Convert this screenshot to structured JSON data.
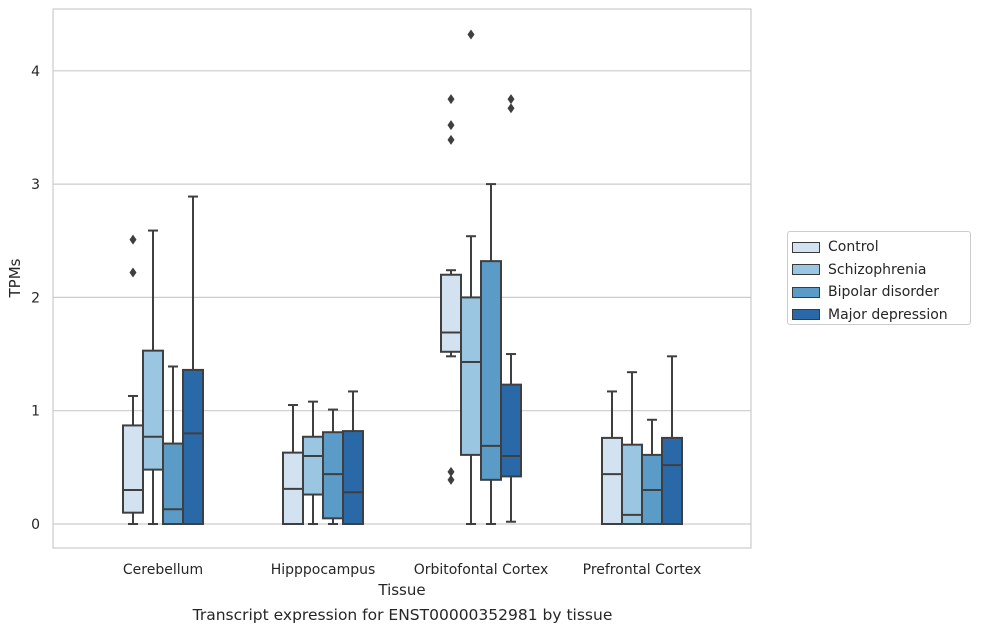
{
  "chart_data": {
    "type": "box",
    "xlabel": "Tissue",
    "ylabel": "TPMs",
    "ylim": [
      -0.21,
      4.55
    ],
    "yticks": [
      0,
      1,
      2,
      3,
      4
    ],
    "grid": "horizontal",
    "legend_position": "center-right, outside",
    "categories": [
      "Cerebellum",
      "Hipppocampus",
      "Orbitofontal Cortex",
      "Prefrontal Cortex"
    ],
    "series": [
      {
        "name": "Control",
        "color": "#d2e2f1",
        "boxes": [
          {
            "whislo": 0.0,
            "q1": 0.1,
            "med": 0.3,
            "q3": 0.87,
            "whishi": 1.13,
            "fliers": [
              2.22,
              2.51
            ]
          },
          {
            "whislo": 0.0,
            "q1": 0.0,
            "med": 0.31,
            "q3": 0.63,
            "whishi": 1.05,
            "fliers": []
          },
          {
            "whislo": 1.48,
            "q1": 1.52,
            "med": 1.69,
            "q3": 2.2,
            "whishi": 2.24,
            "fliers": [
              0.39,
              0.46,
              3.39,
              3.52,
              3.75
            ]
          },
          {
            "whislo": 0.0,
            "q1": 0.0,
            "med": 0.44,
            "q3": 0.76,
            "whishi": 1.17,
            "fliers": []
          }
        ]
      },
      {
        "name": "Schizophrenia",
        "color": "#9bc6e1",
        "boxes": [
          {
            "whislo": 0.0,
            "q1": 0.48,
            "med": 0.77,
            "q3": 1.53,
            "whishi": 2.59,
            "fliers": []
          },
          {
            "whislo": 0.0,
            "q1": 0.26,
            "med": 0.6,
            "q3": 0.77,
            "whishi": 1.08,
            "fliers": []
          },
          {
            "whislo": 0.0,
            "q1": 0.61,
            "med": 1.43,
            "q3": 2.0,
            "whishi": 2.54,
            "fliers": [
              4.32
            ]
          },
          {
            "whislo": 0.0,
            "q1": 0.0,
            "med": 0.08,
            "q3": 0.7,
            "whishi": 1.34,
            "fliers": []
          }
        ]
      },
      {
        "name": "Bipolar disorder",
        "color": "#5a9bc8",
        "boxes": [
          {
            "whislo": 0.0,
            "q1": 0.0,
            "med": 0.13,
            "q3": 0.71,
            "whishi": 1.39,
            "fliers": []
          },
          {
            "whislo": 0.0,
            "q1": 0.05,
            "med": 0.44,
            "q3": 0.81,
            "whishi": 1.01,
            "fliers": []
          },
          {
            "whislo": 0.0,
            "q1": 0.39,
            "med": 0.69,
            "q3": 2.32,
            "whishi": 3.0,
            "fliers": []
          },
          {
            "whislo": 0.0,
            "q1": 0.0,
            "med": 0.3,
            "q3": 0.61,
            "whishi": 0.92,
            "fliers": []
          }
        ]
      },
      {
        "name": "Major depression",
        "color": "#2a69a8",
        "boxes": [
          {
            "whislo": 0.0,
            "q1": 0.0,
            "med": 0.8,
            "q3": 1.36,
            "whishi": 2.89,
            "fliers": []
          },
          {
            "whislo": 0.0,
            "q1": 0.0,
            "med": 0.28,
            "q3": 0.82,
            "whishi": 1.17,
            "fliers": []
          },
          {
            "whislo": 0.02,
            "q1": 0.42,
            "med": 0.6,
            "q3": 1.23,
            "whishi": 1.5,
            "fliers": [
              3.67,
              3.75
            ]
          },
          {
            "whislo": 0.0,
            "q1": 0.0,
            "med": 0.52,
            "q3": 0.76,
            "whishi": 1.48,
            "fliers": []
          }
        ]
      }
    ]
  },
  "caption": "Transcript expression for ENST00000352981 by tissue"
}
